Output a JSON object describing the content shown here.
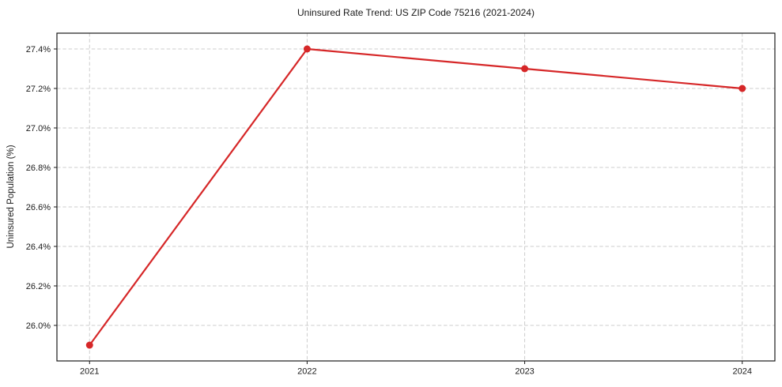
{
  "figure": {
    "background": "#ffffff"
  },
  "chart_data": {
    "type": "line",
    "title": "Uninsured Rate Trend: US ZIP Code 75216 (2021-2024)",
    "xlabel": "",
    "ylabel": "Uninsured Population (%)",
    "x": [
      2021,
      2022,
      2023,
      2024
    ],
    "values": [
      25.9,
      27.4,
      27.3,
      27.2
    ],
    "series_name": "Uninsured rate",
    "xlim": [
      2020.85,
      2024.15
    ],
    "ylim": [
      25.82,
      27.48
    ],
    "xtick_values": [
      2021,
      2022,
      2023,
      2024
    ],
    "xtick_labels": [
      "2021",
      "2022",
      "2023",
      "2024"
    ],
    "ytick_values": [
      26.0,
      26.2,
      26.4,
      26.6,
      26.8,
      27.0,
      27.2,
      27.4
    ],
    "ytick_labels": [
      "26.0%",
      "26.2%",
      "26.4%",
      "26.6%",
      "26.8%",
      "27.0%",
      "27.2%",
      "27.4%"
    ],
    "grid": true,
    "grid_style": "dashed",
    "legend": false,
    "line_color": "#d62728",
    "marker": "circle",
    "grid_color": "#cdcdcd",
    "axis_color": "#1a1a1a"
  }
}
